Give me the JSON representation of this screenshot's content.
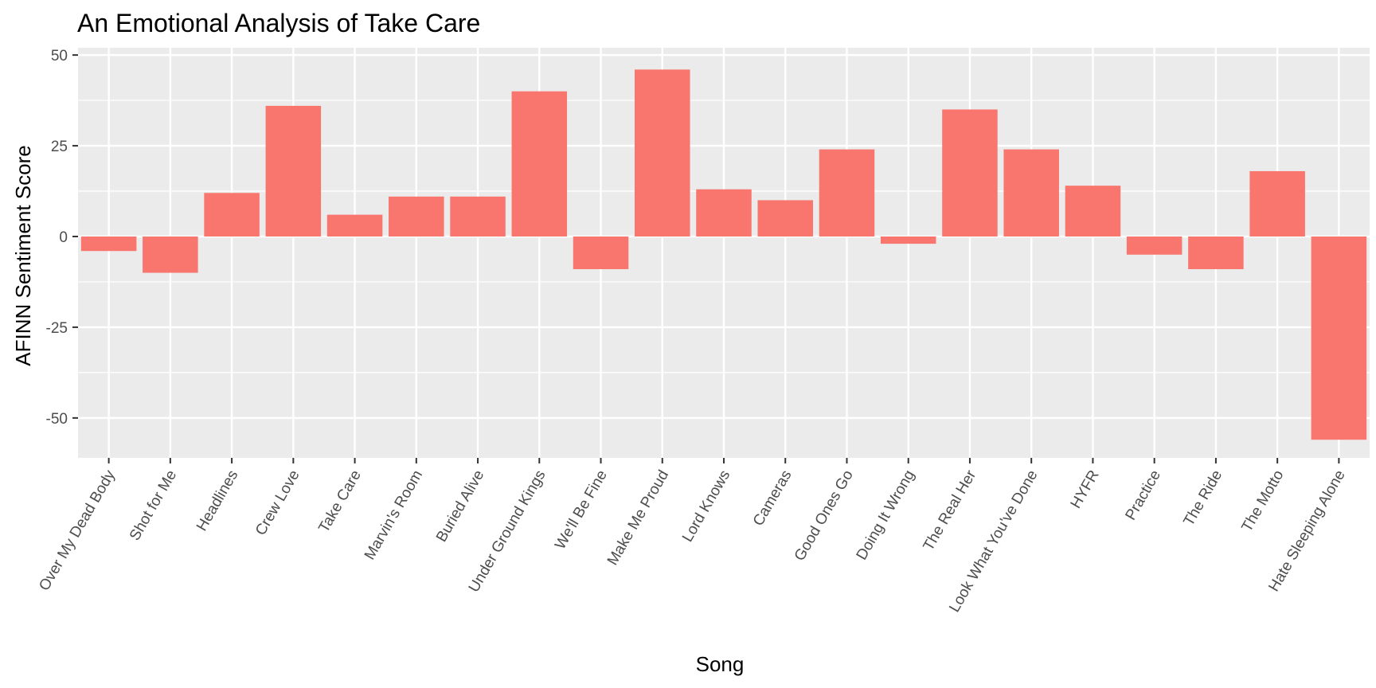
{
  "chart_data": {
    "type": "bar",
    "title": "An Emotional Analysis of Take Care",
    "xlabel": "Song",
    "ylabel": "AFINN Sentiment Score",
    "categories": [
      "Over My Dead Body",
      "Shot for Me",
      "Headlines",
      "Crew Love",
      "Take Care",
      "Marvin's Room",
      "Buried Alive",
      "Under Ground Kings",
      "We'll Be Fine",
      "Make Me Proud",
      "Lord Knows",
      "Cameras",
      "Good Ones Go",
      "Doing It Wrong",
      "The Real Her",
      "Look What You've Done",
      "HYFR",
      "Practice",
      "The Ride",
      "The Motto",
      "Hate Sleeping Alone"
    ],
    "values": [
      -4,
      -10,
      12,
      36,
      6,
      11,
      11,
      40,
      -9,
      46,
      13,
      10,
      24,
      -2,
      35,
      24,
      14,
      -5,
      -9,
      18,
      -56
    ],
    "ylim": [
      -61,
      52
    ],
    "yticks": [
      -50,
      -25,
      0,
      25,
      50
    ],
    "grid": true,
    "legend": "none",
    "colors": {
      "bar": "#F8766D",
      "panel": "#EBEBEB",
      "grid": "#FFFFFF"
    }
  }
}
